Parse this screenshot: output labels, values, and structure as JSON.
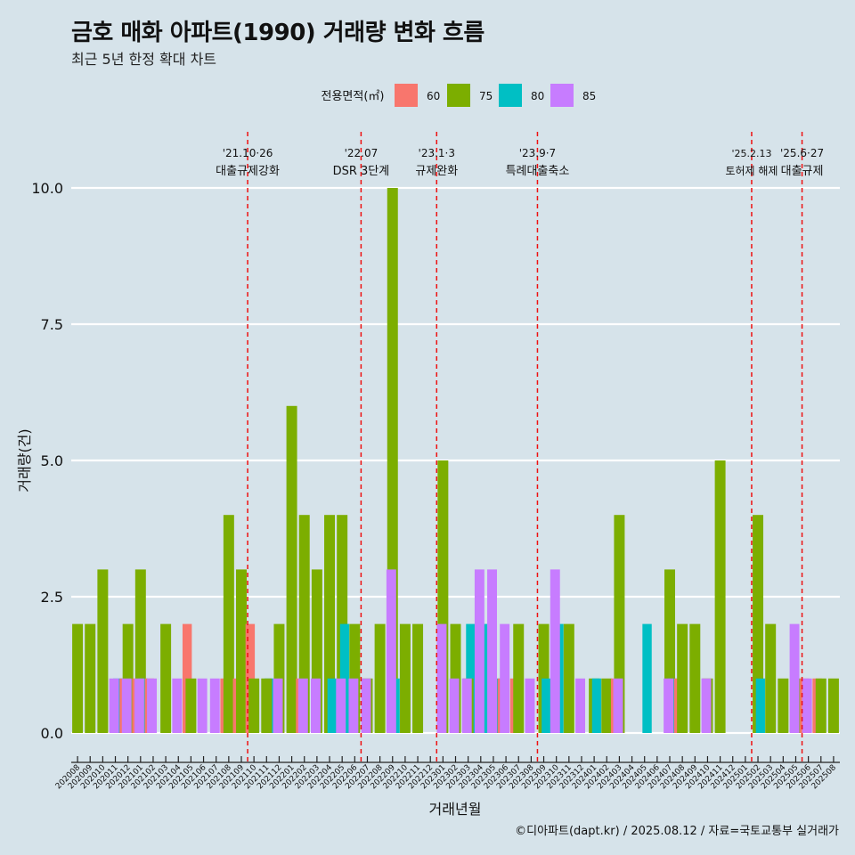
{
  "title": "금호 매화 아파트(1990) 거래량 변화 흐름",
  "subtitle": "최근 5년 한정 확대 차트",
  "caption": "©디아파트(dapt.kr) / 2025.08.12 / 자료=국토교통부 실거래가",
  "legend": {
    "title": "전용면적(㎡)",
    "items": [
      {
        "label": "60",
        "color": "#f8766d"
      },
      {
        "label": "75",
        "color": "#7cae00"
      },
      {
        "label": "80",
        "color": "#00bfc4"
      },
      {
        "label": "85",
        "color": "#c77cff"
      }
    ]
  },
  "chart_data": {
    "type": "bar",
    "title": "금호 매화 아파트(1990) 거래량 변화 흐름",
    "subtitle": "최근 5년 한정 확대 차트",
    "xlabel": "거래년월",
    "ylabel": "거래량(건)",
    "ylim": [
      0,
      10.6
    ],
    "yticks": [
      "0.0",
      "2.5",
      "5.0",
      "7.5",
      "10.0"
    ],
    "grid": "horizontal",
    "legend_position": "top",
    "categories": [
      "202008",
      "202009",
      "202010",
      "202011",
      "202012",
      "202101",
      "202102",
      "202103",
      "202104",
      "202105",
      "202106",
      "202107",
      "202108",
      "202109",
      "202110",
      "202111",
      "202112",
      "202201",
      "202202",
      "202203",
      "202204",
      "202205",
      "202206",
      "202207",
      "202208",
      "202209",
      "202210",
      "202211",
      "202212",
      "202301",
      "202302",
      "202303",
      "202304",
      "202305",
      "202306",
      "202307",
      "202308",
      "202309",
      "202310",
      "202311",
      "202312",
      "202401",
      "202402",
      "202403",
      "202404",
      "202405",
      "202406",
      "202407",
      "202408",
      "202409",
      "202410",
      "202411",
      "202412",
      "202501",
      "202502",
      "202503",
      "202504",
      "202505",
      "202506",
      "202507",
      "202508"
    ],
    "tick_labels": [
      "202008",
      "202009",
      "202010",
      "202011",
      "202012",
      "202101",
      "202102",
      "202103",
      "202104",
      "202105",
      "202106",
      "202107",
      "202108",
      "202109",
      "202110",
      "202111",
      "202112",
      "202201",
      "202202",
      "202203",
      "202204",
      "202205",
      "202206",
      "202207",
      "202208",
      "202209",
      "202210",
      "202211",
      "202212",
      "202301",
      "202302",
      "202303",
      "202304",
      "202305",
      "202306",
      "202307",
      "202308",
      "202309",
      "202310",
      "202311",
      "202312",
      "202401",
      "202402",
      "202403",
      "202404",
      "202405",
      "202406",
      "202407",
      "202408",
      "202409",
      "202410",
      "202411",
      "202412",
      "202501",
      "202502",
      "202503",
      "202504",
      "202505",
      "202506",
      "202507",
      "202508"
    ],
    "bars": [
      {
        "month": "202008",
        "area": "75",
        "values": [
          2
        ]
      },
      {
        "month": "202009",
        "area": "75",
        "values": [
          2
        ]
      },
      {
        "month": "202010",
        "area": "75",
        "values": [
          2,
          3
        ]
      },
      {
        "month": "202011",
        "area": "80",
        "values": [
          1
        ]
      },
      {
        "month": "202011",
        "area": "85",
        "values": [
          1
        ]
      },
      {
        "month": "202012",
        "area": "60",
        "values": [
          1
        ]
      },
      {
        "month": "202012",
        "area": "75",
        "values": [
          2
        ]
      },
      {
        "month": "202012",
        "area": "85",
        "values": [
          1
        ]
      },
      {
        "month": "202101",
        "area": "60",
        "values": [
          1
        ]
      },
      {
        "month": "202101",
        "area": "75",
        "values": [
          3
        ]
      },
      {
        "month": "202101",
        "area": "80",
        "values": [
          1
        ]
      },
      {
        "month": "202101",
        "area": "85",
        "values": [
          1
        ]
      },
      {
        "month": "202102",
        "area": "60",
        "values": [
          1
        ]
      },
      {
        "month": "202102",
        "area": "85",
        "values": [
          1
        ]
      },
      {
        "month": "202103",
        "area": "75",
        "values": [
          2
        ]
      },
      {
        "month": "202104",
        "area": "85",
        "values": [
          1
        ]
      },
      {
        "month": "202105",
        "area": "60",
        "values": [
          2
        ]
      },
      {
        "month": "202105",
        "area": "75",
        "values": [
          1
        ]
      },
      {
        "month": "202106",
        "area": "85",
        "values": [
          1
        ]
      },
      {
        "month": "202107",
        "area": "85",
        "values": [
          1
        ]
      },
      {
        "month": "202108",
        "area": "60",
        "values": [
          1
        ]
      },
      {
        "month": "202108",
        "area": "75",
        "values": [
          4
        ]
      },
      {
        "month": "202109",
        "area": "60",
        "values": [
          1
        ]
      },
      {
        "month": "202109",
        "area": "75",
        "values": [
          3
        ]
      },
      {
        "month": "202110",
        "area": "60",
        "values": [
          2
        ]
      },
      {
        "month": "202110",
        "area": "75",
        "values": [
          1
        ]
      },
      {
        "month": "202111",
        "area": "80",
        "values": [
          1
        ]
      },
      {
        "month": "202111",
        "area": "75",
        "values": [
          1
        ]
      },
      {
        "month": "202112",
        "area": "75",
        "values": [
          2
        ]
      },
      {
        "month": "202112",
        "area": "85",
        "values": [
          1
        ]
      },
      {
        "month": "202201",
        "area": "75",
        "values": [
          6
        ]
      },
      {
        "month": "202202",
        "area": "60",
        "values": [
          1
        ]
      },
      {
        "month": "202202",
        "area": "75",
        "values": [
          4
        ]
      },
      {
        "month": "202202",
        "area": "85",
        "values": [
          1
        ]
      },
      {
        "month": "202203",
        "area": "75",
        "values": [
          3
        ]
      },
      {
        "month": "202203",
        "area": "85",
        "values": [
          1
        ]
      },
      {
        "month": "202204",
        "area": "75",
        "values": [
          4
        ]
      },
      {
        "month": "202204",
        "area": "80",
        "values": [
          1
        ]
      },
      {
        "month": "202205",
        "area": "75",
        "values": [
          4
        ]
      },
      {
        "month": "202205",
        "area": "80",
        "values": [
          2
        ]
      },
      {
        "month": "202205",
        "area": "85",
        "values": [
          1
        ]
      },
      {
        "month": "202206",
        "area": "75",
        "values": [
          2
        ]
      },
      {
        "month": "202206",
        "area": "85",
        "values": [
          1
        ]
      },
      {
        "month": "202207",
        "area": "75",
        "values": [
          1
        ]
      },
      {
        "month": "202207",
        "area": "85",
        "values": [
          1
        ]
      },
      {
        "month": "202208",
        "area": "75",
        "values": [
          2
        ]
      },
      {
        "month": "202209",
        "area": "75",
        "values": [
          10
        ]
      },
      {
        "month": "202209",
        "area": "80",
        "values": [
          1
        ]
      },
      {
        "month": "202209",
        "area": "85",
        "values": [
          3
        ]
      },
      {
        "month": "202210",
        "area": "75",
        "values": [
          2
        ]
      },
      {
        "month": "202211",
        "area": "75",
        "values": [
          2
        ]
      },
      {
        "month": "202301",
        "area": "75",
        "values": [
          5
        ]
      },
      {
        "month": "202301",
        "area": "85",
        "values": [
          2
        ]
      },
      {
        "month": "202302",
        "area": "75",
        "values": [
          2
        ]
      },
      {
        "month": "202302",
        "area": "85",
        "values": [
          1
        ]
      },
      {
        "month": "202303",
        "area": "80",
        "values": [
          2
        ]
      },
      {
        "month": "202303",
        "area": "75",
        "values": [
          1
        ]
      },
      {
        "month": "202303",
        "area": "85",
        "values": [
          1
        ]
      },
      {
        "month": "202304",
        "area": "80",
        "values": [
          2
        ]
      },
      {
        "month": "202304",
        "area": "85",
        "values": [
          3
        ]
      },
      {
        "month": "202305",
        "area": "80",
        "values": [
          1
        ]
      },
      {
        "month": "202305",
        "area": "85",
        "values": [
          3
        ]
      },
      {
        "month": "202306",
        "area": "60",
        "values": [
          1
        ]
      },
      {
        "month": "202306",
        "area": "85",
        "values": [
          2
        ]
      },
      {
        "month": "202307",
        "area": "60",
        "values": [
          1
        ]
      },
      {
        "month": "202307",
        "area": "75",
        "values": [
          2
        ]
      },
      {
        "month": "202308",
        "area": "85",
        "values": [
          1
        ]
      },
      {
        "month": "202309",
        "area": "75",
        "values": [
          2
        ]
      },
      {
        "month": "202309",
        "area": "80",
        "values": [
          1
        ]
      },
      {
        "month": "202310",
        "area": "80",
        "values": [
          2
        ]
      },
      {
        "month": "202310",
        "area": "85",
        "values": [
          3
        ]
      },
      {
        "month": "202311",
        "area": "75",
        "values": [
          2
        ]
      },
      {
        "month": "202312",
        "area": "85",
        "values": [
          1
        ]
      },
      {
        "month": "202401",
        "area": "75",
        "values": [
          1
        ]
      },
      {
        "month": "202401",
        "area": "80",
        "values": [
          1
        ]
      },
      {
        "month": "202402",
        "area": "75",
        "values": [
          1
        ]
      },
      {
        "month": "202403",
        "area": "60",
        "values": [
          1
        ]
      },
      {
        "month": "202403",
        "area": "75",
        "values": [
          4
        ]
      },
      {
        "month": "202403",
        "area": "85",
        "values": [
          1
        ]
      },
      {
        "month": "202405",
        "area": "80",
        "values": [
          2
        ]
      },
      {
        "month": "202407",
        "area": "75",
        "values": [
          3
        ]
      },
      {
        "month": "202407",
        "area": "80",
        "values": [
          1
        ]
      },
      {
        "month": "202407",
        "area": "85",
        "values": [
          1
        ]
      },
      {
        "month": "202408",
        "area": "60",
        "values": [
          1
        ]
      },
      {
        "month": "202408",
        "area": "75",
        "values": [
          2
        ]
      },
      {
        "month": "202409",
        "area": "75",
        "values": [
          2
        ]
      },
      {
        "month": "202410",
        "area": "75",
        "values": [
          1
        ]
      },
      {
        "month": "202410",
        "area": "85",
        "values": [
          1
        ]
      },
      {
        "month": "202411",
        "area": "75",
        "values": [
          5
        ]
      },
      {
        "month": "202502",
        "area": "75",
        "values": [
          4
        ]
      },
      {
        "month": "202502",
        "area": "80",
        "values": [
          1
        ]
      },
      {
        "month": "202503",
        "area": "75",
        "values": [
          2
        ]
      },
      {
        "month": "202504",
        "area": "75",
        "values": [
          1
        ]
      },
      {
        "month": "202505",
        "area": "75",
        "values": [
          1
        ]
      },
      {
        "month": "202505",
        "area": "85",
        "values": [
          2
        ]
      },
      {
        "month": "202506",
        "area": "60",
        "values": [
          1
        ]
      },
      {
        "month": "202506",
        "area": "85",
        "values": [
          1
        ]
      },
      {
        "month": "202507",
        "area": "60",
        "values": [
          1
        ]
      },
      {
        "month": "202507",
        "area": "75",
        "values": [
          1
        ]
      },
      {
        "month": "202508",
        "area": "75",
        "values": [
          1
        ]
      }
    ],
    "events": [
      {
        "month": "202110",
        "date": "'21.10·26",
        "label": "대출규제강화"
      },
      {
        "month": "202207",
        "date": "'22.07",
        "label": "DSR 3단계"
      },
      {
        "month": "202301",
        "date": "'23.1·3",
        "label": "규제완화"
      },
      {
        "month": "202309",
        "date": "'23.9·7",
        "label": "특례대출축소"
      },
      {
        "month": "202502",
        "date": "'25.2.13",
        "label": "토허제 해제"
      },
      {
        "month": "202506",
        "date": "'25.6·27",
        "label": "대출규제"
      }
    ]
  }
}
